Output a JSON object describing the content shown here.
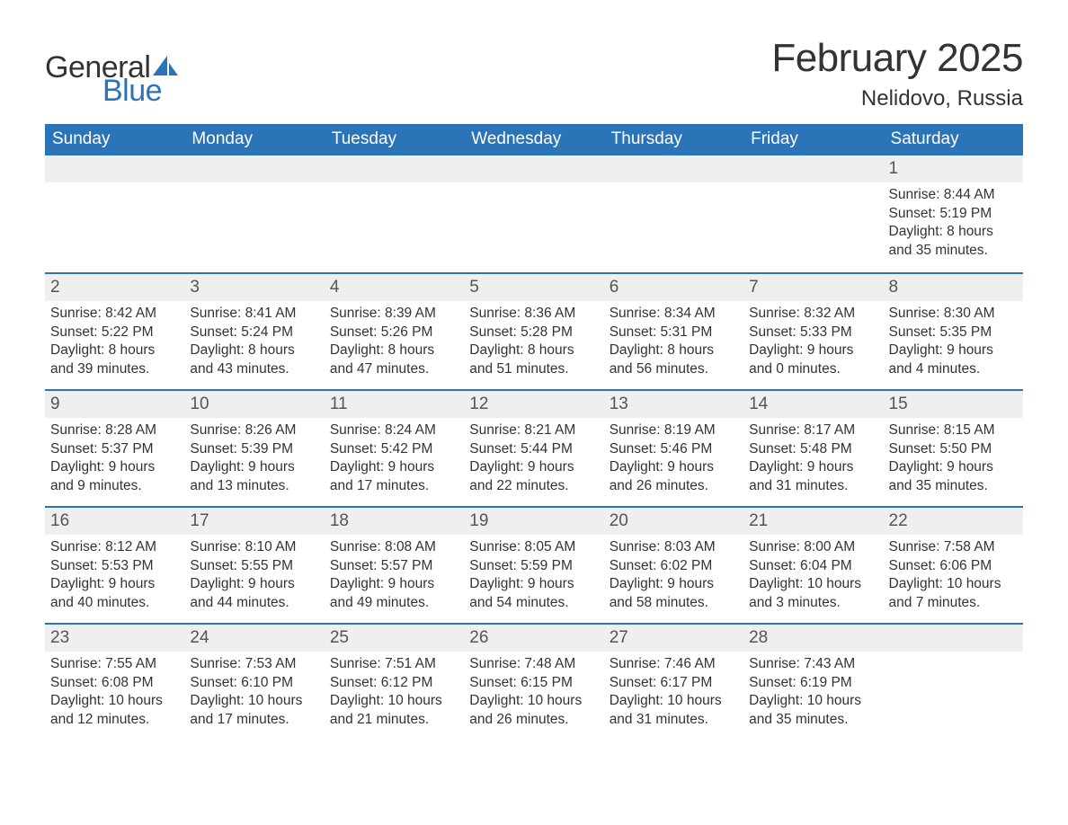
{
  "branding": {
    "word1": "General",
    "word2": "Blue",
    "word1_color": "#333333",
    "word2_color": "#2b74b8",
    "sail_color": "#2b74b8",
    "font_size_pt": 26
  },
  "header": {
    "title": "February 2025",
    "location": "Nelidovo, Russia",
    "title_color": "#333333",
    "title_fontsize_pt": 33,
    "location_fontsize_pt": 18
  },
  "calendar": {
    "type": "table",
    "header_bg": "#2b74b8",
    "header_text_color": "#ffffff",
    "week_divider_color": "#2b74b8",
    "daynum_bg": "#efefef",
    "cell_text_color": "#333333",
    "cell_fontsize_pt": 12,
    "columns": [
      "Sunday",
      "Monday",
      "Tuesday",
      "Wednesday",
      "Thursday",
      "Friday",
      "Saturday"
    ],
    "weeks": [
      [
        {
          "day": "",
          "sunrise": "",
          "sunset": "",
          "daylight": ""
        },
        {
          "day": "",
          "sunrise": "",
          "sunset": "",
          "daylight": ""
        },
        {
          "day": "",
          "sunrise": "",
          "sunset": "",
          "daylight": ""
        },
        {
          "day": "",
          "sunrise": "",
          "sunset": "",
          "daylight": ""
        },
        {
          "day": "",
          "sunrise": "",
          "sunset": "",
          "daylight": ""
        },
        {
          "day": "",
          "sunrise": "",
          "sunset": "",
          "daylight": ""
        },
        {
          "day": "1",
          "sunrise": "Sunrise: 8:44 AM",
          "sunset": "Sunset: 5:19 PM",
          "daylight": "Daylight: 8 hours and 35 minutes."
        }
      ],
      [
        {
          "day": "2",
          "sunrise": "Sunrise: 8:42 AM",
          "sunset": "Sunset: 5:22 PM",
          "daylight": "Daylight: 8 hours and 39 minutes."
        },
        {
          "day": "3",
          "sunrise": "Sunrise: 8:41 AM",
          "sunset": "Sunset: 5:24 PM",
          "daylight": "Daylight: 8 hours and 43 minutes."
        },
        {
          "day": "4",
          "sunrise": "Sunrise: 8:39 AM",
          "sunset": "Sunset: 5:26 PM",
          "daylight": "Daylight: 8 hours and 47 minutes."
        },
        {
          "day": "5",
          "sunrise": "Sunrise: 8:36 AM",
          "sunset": "Sunset: 5:28 PM",
          "daylight": "Daylight: 8 hours and 51 minutes."
        },
        {
          "day": "6",
          "sunrise": "Sunrise: 8:34 AM",
          "sunset": "Sunset: 5:31 PM",
          "daylight": "Daylight: 8 hours and 56 minutes."
        },
        {
          "day": "7",
          "sunrise": "Sunrise: 8:32 AM",
          "sunset": "Sunset: 5:33 PM",
          "daylight": "Daylight: 9 hours and 0 minutes."
        },
        {
          "day": "8",
          "sunrise": "Sunrise: 8:30 AM",
          "sunset": "Sunset: 5:35 PM",
          "daylight": "Daylight: 9 hours and 4 minutes."
        }
      ],
      [
        {
          "day": "9",
          "sunrise": "Sunrise: 8:28 AM",
          "sunset": "Sunset: 5:37 PM",
          "daylight": "Daylight: 9 hours and 9 minutes."
        },
        {
          "day": "10",
          "sunrise": "Sunrise: 8:26 AM",
          "sunset": "Sunset: 5:39 PM",
          "daylight": "Daylight: 9 hours and 13 minutes."
        },
        {
          "day": "11",
          "sunrise": "Sunrise: 8:24 AM",
          "sunset": "Sunset: 5:42 PM",
          "daylight": "Daylight: 9 hours and 17 minutes."
        },
        {
          "day": "12",
          "sunrise": "Sunrise: 8:21 AM",
          "sunset": "Sunset: 5:44 PM",
          "daylight": "Daylight: 9 hours and 22 minutes."
        },
        {
          "day": "13",
          "sunrise": "Sunrise: 8:19 AM",
          "sunset": "Sunset: 5:46 PM",
          "daylight": "Daylight: 9 hours and 26 minutes."
        },
        {
          "day": "14",
          "sunrise": "Sunrise: 8:17 AM",
          "sunset": "Sunset: 5:48 PM",
          "daylight": "Daylight: 9 hours and 31 minutes."
        },
        {
          "day": "15",
          "sunrise": "Sunrise: 8:15 AM",
          "sunset": "Sunset: 5:50 PM",
          "daylight": "Daylight: 9 hours and 35 minutes."
        }
      ],
      [
        {
          "day": "16",
          "sunrise": "Sunrise: 8:12 AM",
          "sunset": "Sunset: 5:53 PM",
          "daylight": "Daylight: 9 hours and 40 minutes."
        },
        {
          "day": "17",
          "sunrise": "Sunrise: 8:10 AM",
          "sunset": "Sunset: 5:55 PM",
          "daylight": "Daylight: 9 hours and 44 minutes."
        },
        {
          "day": "18",
          "sunrise": "Sunrise: 8:08 AM",
          "sunset": "Sunset: 5:57 PM",
          "daylight": "Daylight: 9 hours and 49 minutes."
        },
        {
          "day": "19",
          "sunrise": "Sunrise: 8:05 AM",
          "sunset": "Sunset: 5:59 PM",
          "daylight": "Daylight: 9 hours and 54 minutes."
        },
        {
          "day": "20",
          "sunrise": "Sunrise: 8:03 AM",
          "sunset": "Sunset: 6:02 PM",
          "daylight": "Daylight: 9 hours and 58 minutes."
        },
        {
          "day": "21",
          "sunrise": "Sunrise: 8:00 AM",
          "sunset": "Sunset: 6:04 PM",
          "daylight": "Daylight: 10 hours and 3 minutes."
        },
        {
          "day": "22",
          "sunrise": "Sunrise: 7:58 AM",
          "sunset": "Sunset: 6:06 PM",
          "daylight": "Daylight: 10 hours and 7 minutes."
        }
      ],
      [
        {
          "day": "23",
          "sunrise": "Sunrise: 7:55 AM",
          "sunset": "Sunset: 6:08 PM",
          "daylight": "Daylight: 10 hours and 12 minutes."
        },
        {
          "day": "24",
          "sunrise": "Sunrise: 7:53 AM",
          "sunset": "Sunset: 6:10 PM",
          "daylight": "Daylight: 10 hours and 17 minutes."
        },
        {
          "day": "25",
          "sunrise": "Sunrise: 7:51 AM",
          "sunset": "Sunset: 6:12 PM",
          "daylight": "Daylight: 10 hours and 21 minutes."
        },
        {
          "day": "26",
          "sunrise": "Sunrise: 7:48 AM",
          "sunset": "Sunset: 6:15 PM",
          "daylight": "Daylight: 10 hours and 26 minutes."
        },
        {
          "day": "27",
          "sunrise": "Sunrise: 7:46 AM",
          "sunset": "Sunset: 6:17 PM",
          "daylight": "Daylight: 10 hours and 31 minutes."
        },
        {
          "day": "28",
          "sunrise": "Sunrise: 7:43 AM",
          "sunset": "Sunset: 6:19 PM",
          "daylight": "Daylight: 10 hours and 35 minutes."
        },
        {
          "day": "",
          "sunrise": "",
          "sunset": "",
          "daylight": ""
        }
      ]
    ]
  }
}
